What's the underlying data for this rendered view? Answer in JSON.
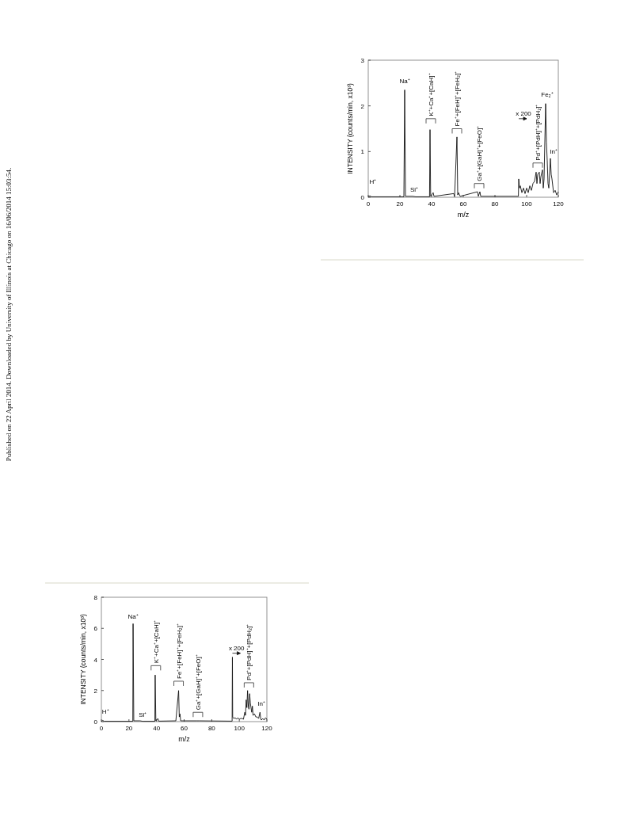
{
  "chart_data": [
    {
      "type": "line",
      "xlabel": "m/z",
      "ylabel": "INTENSITY (counts/min, x10³)",
      "xlim": [
        0,
        120
      ],
      "ylim": [
        0,
        3
      ],
      "xticks": [
        0,
        20,
        40,
        60,
        80,
        100,
        120
      ],
      "yticks": [
        0,
        1,
        2,
        3
      ],
      "grid": false,
      "series": [
        {
          "color": "#111111",
          "x": [
            0,
            1,
            2,
            10,
            22.5,
            23,
            23.5,
            28,
            30,
            38.7,
            39,
            39.4,
            41,
            41.5,
            54,
            54.5,
            56,
            56.5,
            57,
            58,
            69,
            69.5,
            70.5,
            71,
            94.8,
            95,
            95.5,
            96,
            97,
            98,
            99,
            100,
            101,
            102,
            103,
            104,
            105,
            106,
            106.5,
            107,
            108,
            108.5,
            109,
            110,
            110.5,
            111,
            112,
            112.5,
            113,
            113.5,
            114,
            115,
            115.5,
            116,
            117,
            118,
            119,
            120
          ],
          "values": [
            0.01,
            0.03,
            0.01,
            0.01,
            0.01,
            2.35,
            0.02,
            0.02,
            0.01,
            0.01,
            1.48,
            0.02,
            0.1,
            0.02,
            0.08,
            0.01,
            1.32,
            0.05,
            0.1,
            0.02,
            0.12,
            0.02,
            0.12,
            0.02,
            0.02,
            0.4,
            0.2,
            0.25,
            0.1,
            0.2,
            0.08,
            0.2,
            0.1,
            0.25,
            0.15,
            0.3,
            0.35,
            0.55,
            0.3,
            0.5,
            0.55,
            0.3,
            0.45,
            0.6,
            0.2,
            0.4,
            2.05,
            1.2,
            0.8,
            0.3,
            0.2,
            0.85,
            0.5,
            0.4,
            0.1,
            0.15,
            0.05,
            0.12
          ]
        }
      ],
      "annotations": [
        "H⁺",
        "Na⁺",
        "Si⁺",
        "K⁺+Ca⁺+[CaH]⁺",
        "Fe⁺+[FeH]⁺+[FeH₂]⁺",
        "Ga⁺+[GaH]⁺+[FeO]⁺",
        "x 200",
        "Pd⁺+[PdH]⁺+[PdH₂]⁺",
        "Fe₂⁺",
        "In⁺",
        "Published on 22 April 2014. Downloaded by University of Illinois at Chicago on 16/06/2014 15:03:54."
      ]
    },
    {
      "type": "line",
      "xlabel": "m/z",
      "ylabel": "INTENSITY (counts/min, x10³)",
      "xlim": [
        0,
        120
      ],
      "ylim": [
        0,
        8
      ],
      "xticks": [
        0,
        20,
        40,
        60,
        80,
        100,
        120
      ],
      "yticks": [
        0,
        2,
        4,
        6,
        8
      ],
      "grid": false,
      "series": [
        {
          "color": "#111111",
          "x": [
            0,
            1,
            2,
            22.8,
            23,
            23.5,
            28,
            30,
            38.8,
            39,
            39.5,
            41,
            41.5,
            54,
            56,
            56.5,
            57,
            57.5,
            69,
            71,
            94.8,
            95,
            95.2,
            96,
            97,
            98,
            99,
            100,
            101,
            102,
            103,
            104,
            104.5,
            105,
            105.5,
            106,
            106.5,
            107,
            107.5,
            108,
            109,
            109.5,
            110,
            111,
            112,
            113,
            114,
            115,
            115.5,
            116,
            117,
            118,
            119,
            120
          ],
          "values": [
            0.02,
            0.08,
            0.02,
            0.02,
            6.3,
            0.05,
            0.05,
            0.02,
            0.02,
            3.0,
            0.05,
            0.2,
            0.03,
            0.05,
            2.0,
            0.3,
            0.5,
            0.05,
            0.05,
            0.05,
            0.03,
            4.15,
            0.3,
            0.2,
            0.25,
            0.15,
            0.25,
            0.15,
            0.2,
            0.2,
            0.15,
            0.6,
            0.4,
            1.4,
            0.9,
            2.0,
            1.0,
            0.8,
            1.8,
            1.2,
            0.6,
            1.0,
            0.4,
            0.5,
            0.3,
            0.3,
            0.2,
            0.6,
            0.2,
            0.1,
            0.2,
            0.1,
            0.25,
            0.15
          ]
        }
      ],
      "annotations": [
        "H⁺",
        "Na⁺",
        "Si⁺",
        "K⁺+Ca⁺+[CaH]⁺",
        "Fe⁺+[FeH]⁺+[FeH₂]⁺",
        "Ga⁺+[GaH]⁺+[FeO]⁺",
        "x 200",
        "Pd⁺+[PdH]⁺+[PdH₂]⁺",
        "In⁺"
      ]
    }
  ]
}
